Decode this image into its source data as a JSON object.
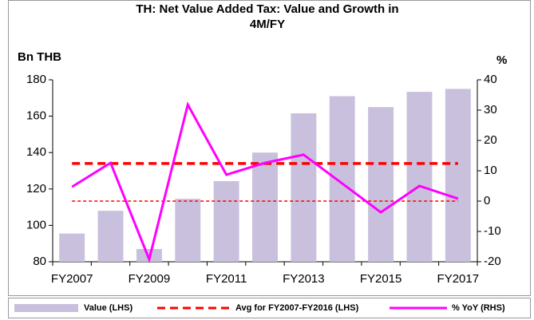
{
  "chart_data": {
    "type": "bar_line",
    "title": "TH: Net Value Added Tax: Value and Growth in 4M/FY",
    "ylabel": "Bn THB",
    "y2label": "%",
    "categories": [
      "FY2007",
      null,
      "FY2009",
      null,
      "FY2011",
      null,
      "FY2013",
      null,
      "FY2015",
      null,
      "FY2017"
    ],
    "series": [
      {
        "name": "Value (LHS)",
        "type": "bar",
        "color": "#c9c0dd",
        "values": [
          95.5,
          108,
          87,
          114.6,
          124.3,
          140,
          161.6,
          171,
          165,
          173.4,
          175
        ]
      },
      {
        "name": "Avg for FY2007-FY2016 (LHS)",
        "type": "line",
        "dashed": true,
        "color": "#ff0000",
        "values": [
          134,
          134,
          134,
          134,
          134,
          134,
          134,
          134,
          134,
          134,
          134
        ]
      },
      {
        "name": "% YoY (RHS)",
        "type": "line",
        "axis": "y2",
        "color": "#ff00ff",
        "values": [
          4.7,
          12.6,
          -19.2,
          31.8,
          8.7,
          12.6,
          15.3,
          5.8,
          -3.7,
          5,
          0.8
        ]
      }
    ],
    "ylim": [
      80,
      180
    ],
    "yticks": [
      80,
      100,
      120,
      140,
      160,
      180
    ],
    "y2lim": [
      -20,
      40
    ],
    "y2ticks": [
      -20,
      -10,
      0,
      10,
      20,
      30,
      40
    ],
    "y2_zero_line": true,
    "legend": "bottom"
  }
}
